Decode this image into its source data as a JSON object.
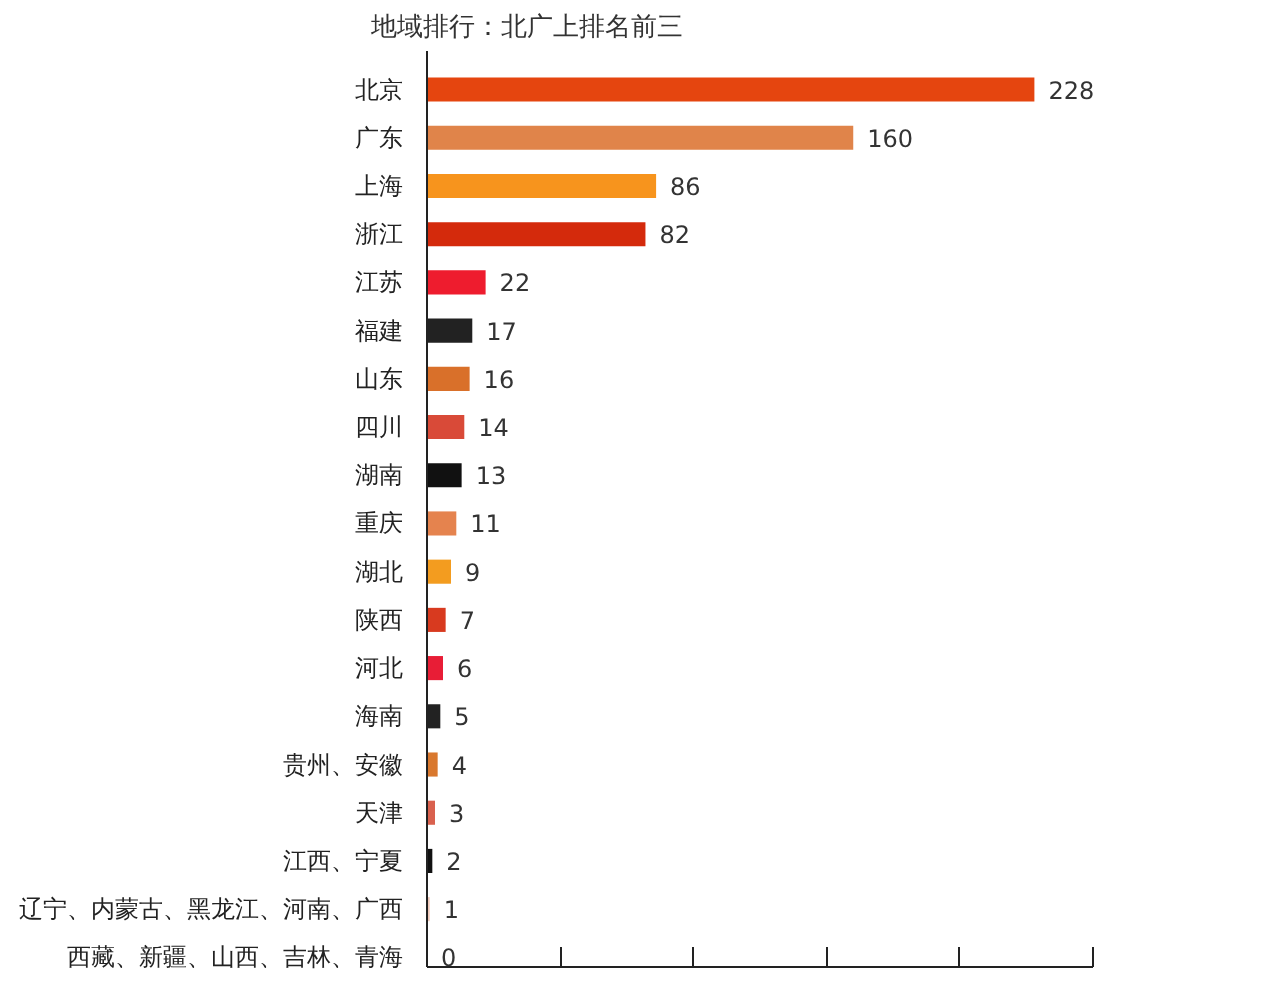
{
  "chart_data": {
    "type": "bar",
    "orientation": "horizontal",
    "title": "地域排行：北广上排名前三",
    "categories": [
      "北京",
      "广东",
      "上海",
      "浙江",
      "江苏",
      "福建",
      "山东",
      "四川",
      "湖南",
      "重庆",
      "湖北",
      "陕西",
      "河北",
      "海南",
      "贵州、安徽",
      "天津",
      "江西、宁夏",
      "辽宁、内蒙古、黑龙江、河南、广西",
      "西藏、新疆、山西、吉林、青海"
    ],
    "values": [
      228,
      160,
      86,
      82,
      22,
      17,
      16,
      14,
      13,
      11,
      9,
      7,
      6,
      5,
      4,
      3,
      2,
      1,
      0
    ],
    "colors": [
      "#e5450f",
      "#e0844a",
      "#f7941d",
      "#d42a0c",
      "#ee1c2e",
      "#222222",
      "#d9702a",
      "#d94a38",
      "#111111",
      "#e5834e",
      "#f39c1f",
      "#d83a1f",
      "#e81d36",
      "#222222",
      "#d9782e",
      "#d9614e",
      "#111111",
      "#f0c8b8",
      "#f0c8b8"
    ],
    "xlim": [
      0,
      250
    ],
    "xticks": [
      {
        "value": 0,
        "label": null
      },
      {
        "value": 50,
        "label": null
      },
      {
        "value": 100,
        "label": null
      },
      {
        "value": 150,
        "label": null
      },
      {
        "value": 200,
        "label": null
      },
      {
        "value": 250,
        "label": null
      }
    ],
    "tick_labels": "y",
    "data_labels": true
  }
}
